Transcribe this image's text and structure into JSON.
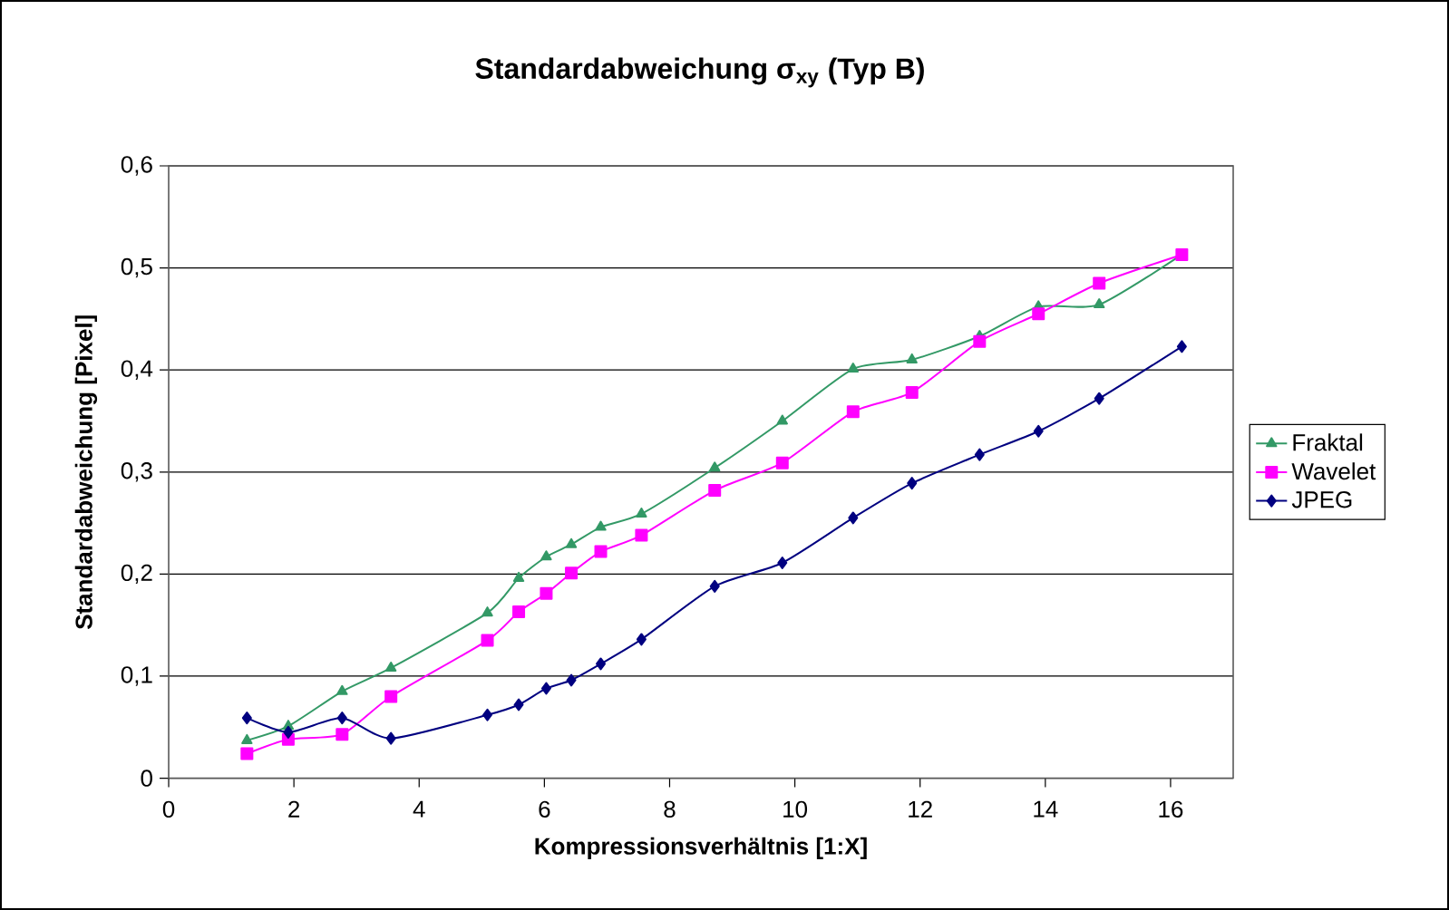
{
  "chart_data": {
    "type": "line",
    "title": "Standardabweichung σ$_{xy}$ (Typ B)",
    "xlabel": "Kompressionsverhältnis [1:X]",
    "ylabel": "Standardabweichung [Pixel]",
    "x": [
      1.25,
      1.91,
      2.77,
      3.55,
      5.09,
      5.59,
      6.03,
      6.43,
      6.9,
      7.55,
      8.72,
      9.8,
      10.93,
      11.87,
      12.95,
      13.89,
      14.86,
      16.18
    ],
    "series": [
      {
        "name": "Fraktal",
        "color": "#339966",
        "marker": "triangle",
        "values": [
          0.037,
          0.051,
          0.085,
          0.108,
          0.162,
          0.196,
          0.217,
          0.229,
          0.246,
          0.259,
          0.304,
          0.35,
          0.401,
          0.41,
          0.433,
          0.462,
          0.464,
          0.513
        ]
      },
      {
        "name": "Wavelet",
        "color": "#ff00ff",
        "marker": "square",
        "values": [
          0.024,
          0.038,
          0.043,
          0.08,
          0.135,
          0.163,
          0.181,
          0.201,
          0.222,
          0.238,
          0.282,
          0.309,
          0.359,
          0.378,
          0.428,
          0.455,
          0.485,
          0.513
        ]
      },
      {
        "name": "JPEG",
        "color": "#000080",
        "marker": "diamond",
        "values": [
          0.059,
          0.045,
          0.059,
          0.039,
          0.062,
          0.072,
          0.088,
          0.096,
          0.112,
          0.136,
          0.188,
          0.211,
          0.255,
          0.289,
          0.317,
          0.34,
          0.372,
          0.423
        ]
      }
    ],
    "xlim": [
      0,
      17
    ],
    "xticks": [
      0,
      2,
      4,
      6,
      8,
      10,
      12,
      14,
      16
    ],
    "ylim": [
      0,
      0.6
    ],
    "yticks": [
      0,
      {
        "value": 0.1,
        "label": "0,1"
      },
      {
        "value": 0.2,
        "label": "0,2"
      },
      {
        "value": 0.3,
        "label": "0,3"
      },
      {
        "value": 0.4,
        "label": "0,4"
      },
      {
        "value": 0.5,
        "label": "0,5"
      },
      {
        "value": 0.6,
        "label": "0,6"
      }
    ],
    "grid": "y",
    "legend": "right"
  }
}
